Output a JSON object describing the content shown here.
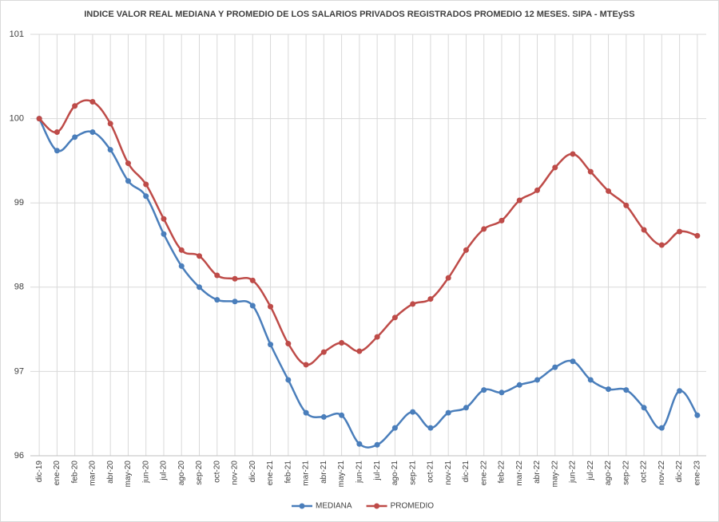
{
  "chart_data": {
    "type": "line",
    "title": "INDICE VALOR REAL MEDIANA Y PROMEDIO DE LOS SALARIOS PRIVADOS REGISTRADOS PROMEDIO 12 MESES. SIPA - MTEySS",
    "categories": [
      "dic-19",
      "ene-20",
      "feb-20",
      "mar-20",
      "abr-20",
      "may-20",
      "jun-20",
      "jul-20",
      "ago-20",
      "sep-20",
      "oct-20",
      "nov-20",
      "dic-20",
      "ene-21",
      "feb-21",
      "mar-21",
      "abr-21",
      "may-21",
      "jun-21",
      "jul-21",
      "ago-21",
      "sep-21",
      "oct-21",
      "nov-21",
      "dic-21",
      "ene-22",
      "feb-22",
      "mar-22",
      "abr-22",
      "may-22",
      "jun-22",
      "jul-22",
      "ago-22",
      "sep-22",
      "oct-22",
      "nov-22",
      "dic-22",
      "ene-23"
    ],
    "series": [
      {
        "name": "MEDIANA",
        "color": "#4a7ebb",
        "values": [
          100.0,
          99.62,
          99.78,
          99.84,
          99.63,
          99.26,
          99.08,
          98.63,
          98.25,
          98.0,
          97.85,
          97.83,
          97.78,
          97.32,
          96.9,
          96.51,
          96.46,
          96.48,
          96.14,
          96.13,
          96.33,
          96.52,
          96.33,
          96.51,
          96.57,
          96.78,
          96.75,
          96.84,
          96.9,
          97.05,
          97.12,
          96.9,
          96.79,
          96.78,
          96.57,
          96.33,
          96.77,
          96.48
        ]
      },
      {
        "name": "PROMEDIO",
        "color": "#be4b48",
        "values": [
          100.0,
          99.84,
          100.15,
          100.2,
          99.94,
          99.47,
          99.22,
          98.81,
          98.44,
          98.37,
          98.14,
          98.1,
          98.08,
          97.77,
          97.33,
          97.08,
          97.23,
          97.34,
          97.24,
          97.41,
          97.64,
          97.8,
          97.86,
          98.11,
          98.44,
          98.69,
          98.79,
          99.03,
          99.15,
          99.42,
          99.58,
          99.37,
          99.14,
          98.97,
          98.68,
          98.5,
          98.66,
          98.61
        ]
      }
    ],
    "ylim": [
      96,
      101
    ],
    "yticks": [
      96,
      97,
      98,
      99,
      100,
      101
    ],
    "grid": true,
    "legend": "bottom"
  }
}
